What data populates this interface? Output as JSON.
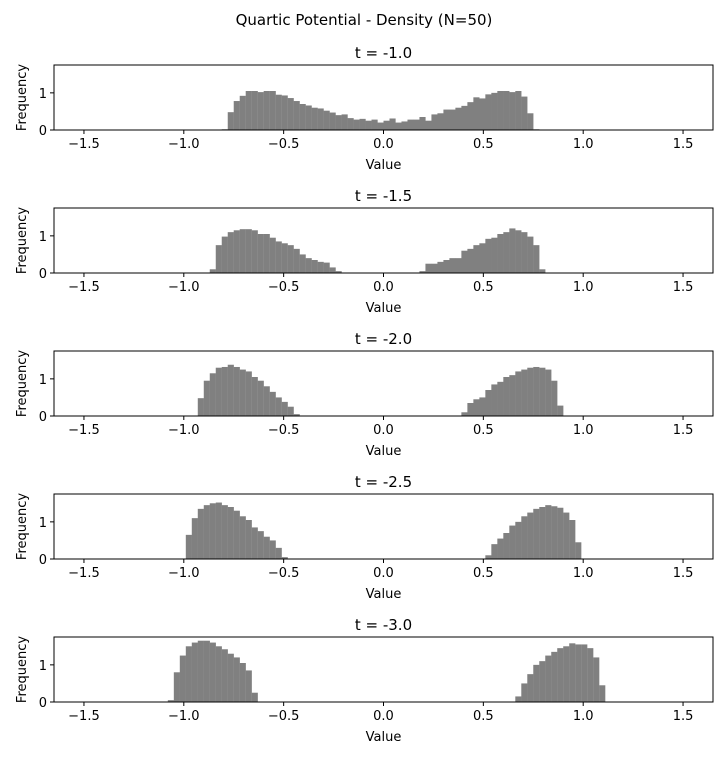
{
  "figure": {
    "title": "Quartic Potential - Density (N=50)"
  },
  "chart_data": [
    {
      "type": "bar",
      "title": "t = -1.0",
      "xlabel": "Value",
      "ylabel": "Frequency",
      "xlim": [
        -1.65,
        1.65
      ],
      "ylim": [
        0,
        1.75
      ],
      "xticks": [
        -1.5,
        -1.0,
        -0.5,
        0.0,
        0.5,
        1.0,
        1.5
      ],
      "xtick_labels": [
        "−1.5",
        "−1.0",
        "−0.5",
        "0.0",
        "0.5",
        "1.0",
        "1.5"
      ],
      "yticks": [
        0,
        1
      ],
      "ytick_labels": [
        "0",
        "1"
      ],
      "bin_start": -0.81,
      "bin_width": 0.03,
      "values": [
        0.02,
        0.48,
        0.78,
        0.92,
        1.05,
        1.05,
        1.02,
        1.05,
        1.05,
        0.95,
        0.93,
        0.86,
        0.78,
        0.7,
        0.66,
        0.6,
        0.58,
        0.52,
        0.47,
        0.4,
        0.42,
        0.32,
        0.28,
        0.3,
        0.25,
        0.28,
        0.2,
        0.25,
        0.31,
        0.2,
        0.23,
        0.28,
        0.28,
        0.35,
        0.25,
        0.42,
        0.45,
        0.55,
        0.55,
        0.6,
        0.65,
        0.75,
        0.88,
        0.85,
        0.96,
        1.0,
        1.05,
        1.05,
        1.02,
        1.05,
        0.9,
        0.45,
        0.02
      ]
    },
    {
      "type": "bar",
      "title": "t = -1.5",
      "xlabel": "Value",
      "ylabel": "Frequency",
      "xlim": [
        -1.65,
        1.65
      ],
      "ylim": [
        0,
        1.75
      ],
      "xticks": [
        -1.5,
        -1.0,
        -0.5,
        0.0,
        0.5,
        1.0,
        1.5
      ],
      "xtick_labels": [
        "−1.5",
        "−1.0",
        "−0.5",
        "0.0",
        "0.5",
        "1.0",
        "1.5"
      ],
      "yticks": [
        0,
        1
      ],
      "ytick_labels": [
        "0",
        "1"
      ],
      "bin_start": -0.87,
      "bin_width": 0.03,
      "values": [
        0.1,
        0.75,
        0.98,
        1.1,
        1.15,
        1.18,
        1.18,
        1.15,
        1.05,
        1.05,
        0.95,
        0.85,
        0.8,
        0.75,
        0.65,
        0.5,
        0.4,
        0.35,
        0.3,
        0.28,
        0.15,
        0.05,
        0,
        0,
        0,
        0,
        0,
        0,
        0,
        0,
        0,
        0,
        0,
        0,
        0,
        0.05,
        0.25,
        0.25,
        0.3,
        0.35,
        0.4,
        0.4,
        0.6,
        0.65,
        0.75,
        0.8,
        0.92,
        0.95,
        1.05,
        1.1,
        1.2,
        1.15,
        1.1,
        0.98,
        0.75,
        0.1
      ]
    },
    {
      "type": "bar",
      "title": "t = -2.0",
      "xlabel": "Value",
      "ylabel": "Frequency",
      "xlim": [
        -1.65,
        1.65
      ],
      "ylim": [
        0,
        1.75
      ],
      "xticks": [
        -1.5,
        -1.0,
        -0.5,
        0.0,
        0.5,
        1.0,
        1.5
      ],
      "xtick_labels": [
        "−1.5",
        "−1.0",
        "−0.5",
        "0.0",
        "0.5",
        "1.0",
        "1.5"
      ],
      "yticks": [
        0,
        1
      ],
      "ytick_labels": [
        "0",
        "1"
      ],
      "bin_start": -0.93,
      "bin_width": 0.03,
      "values": [
        0.48,
        0.95,
        1.15,
        1.3,
        1.32,
        1.38,
        1.32,
        1.25,
        1.2,
        1.05,
        0.95,
        0.8,
        0.65,
        0.5,
        0.38,
        0.25,
        0.05,
        0,
        0,
        0,
        0,
        0,
        0,
        0,
        0,
        0,
        0,
        0,
        0,
        0,
        0,
        0,
        0,
        0,
        0,
        0,
        0,
        0,
        0,
        0,
        0,
        0,
        0,
        0,
        0.1,
        0.35,
        0.45,
        0.5,
        0.7,
        0.85,
        0.92,
        1.05,
        1.1,
        1.2,
        1.25,
        1.3,
        1.32,
        1.3,
        1.25,
        0.95,
        0.28
      ]
    },
    {
      "type": "bar",
      "title": "t = -2.5",
      "xlabel": "Value",
      "ylabel": "Frequency",
      "xlim": [
        -1.65,
        1.65
      ],
      "ylim": [
        0,
        1.75
      ],
      "xticks": [
        -1.5,
        -1.0,
        -0.5,
        0.0,
        0.5,
        1.0,
        1.5
      ],
      "xtick_labels": [
        "−1.5",
        "−1.0",
        "−0.5",
        "0.0",
        "0.5",
        "1.0",
        "1.5"
      ],
      "yticks": [
        0,
        1
      ],
      "ytick_labels": [
        "0",
        "1"
      ],
      "bin_start": -0.99,
      "bin_width": 0.03,
      "values": [
        0.65,
        1.1,
        1.35,
        1.45,
        1.5,
        1.52,
        1.45,
        1.4,
        1.3,
        1.15,
        1.05,
        0.85,
        0.75,
        0.6,
        0.5,
        0.3,
        0.05,
        0,
        0,
        0,
        0,
        0,
        0,
        0,
        0,
        0,
        0,
        0,
        0,
        0,
        0,
        0,
        0,
        0,
        0,
        0,
        0,
        0,
        0,
        0,
        0,
        0,
        0,
        0,
        0,
        0,
        0,
        0,
        0,
        0,
        0.1,
        0.4,
        0.55,
        0.7,
        0.9,
        1.0,
        1.15,
        1.25,
        1.35,
        1.4,
        1.45,
        1.42,
        1.38,
        1.25,
        1.05,
        0.45
      ]
    },
    {
      "type": "bar",
      "title": "t = -3.0",
      "xlabel": "Value",
      "ylabel": "Frequency",
      "xlim": [
        -1.65,
        1.65
      ],
      "ylim": [
        0,
        1.75
      ],
      "xticks": [
        -1.5,
        -1.0,
        -0.5,
        0.0,
        0.5,
        1.0,
        1.5
      ],
      "xtick_labels": [
        "−1.5",
        "−1.0",
        "−0.5",
        "0.0",
        "0.5",
        "1.0",
        "1.5"
      ],
      "yticks": [
        0,
        1
      ],
      "ytick_labels": [
        "0",
        "1"
      ],
      "bin_start": -1.08,
      "bin_width": 0.03,
      "values": [
        0.05,
        0.8,
        1.25,
        1.5,
        1.6,
        1.65,
        1.65,
        1.6,
        1.5,
        1.42,
        1.3,
        1.2,
        1.05,
        0.85,
        0.25,
        0,
        0,
        0,
        0,
        0,
        0,
        0,
        0,
        0,
        0,
        0,
        0,
        0,
        0,
        0,
        0,
        0,
        0,
        0,
        0,
        0,
        0,
        0,
        0,
        0,
        0,
        0,
        0,
        0,
        0,
        0,
        0,
        0,
        0,
        0,
        0,
        0,
        0,
        0,
        0,
        0,
        0,
        0,
        0.15,
        0.5,
        0.75,
        1.0,
        1.1,
        1.25,
        1.35,
        1.45,
        1.5,
        1.58,
        1.55,
        1.55,
        1.45,
        1.2,
        0.45
      ]
    }
  ],
  "colors": {
    "bar": "#808080",
    "axis": "#000000",
    "background": "#ffffff"
  }
}
